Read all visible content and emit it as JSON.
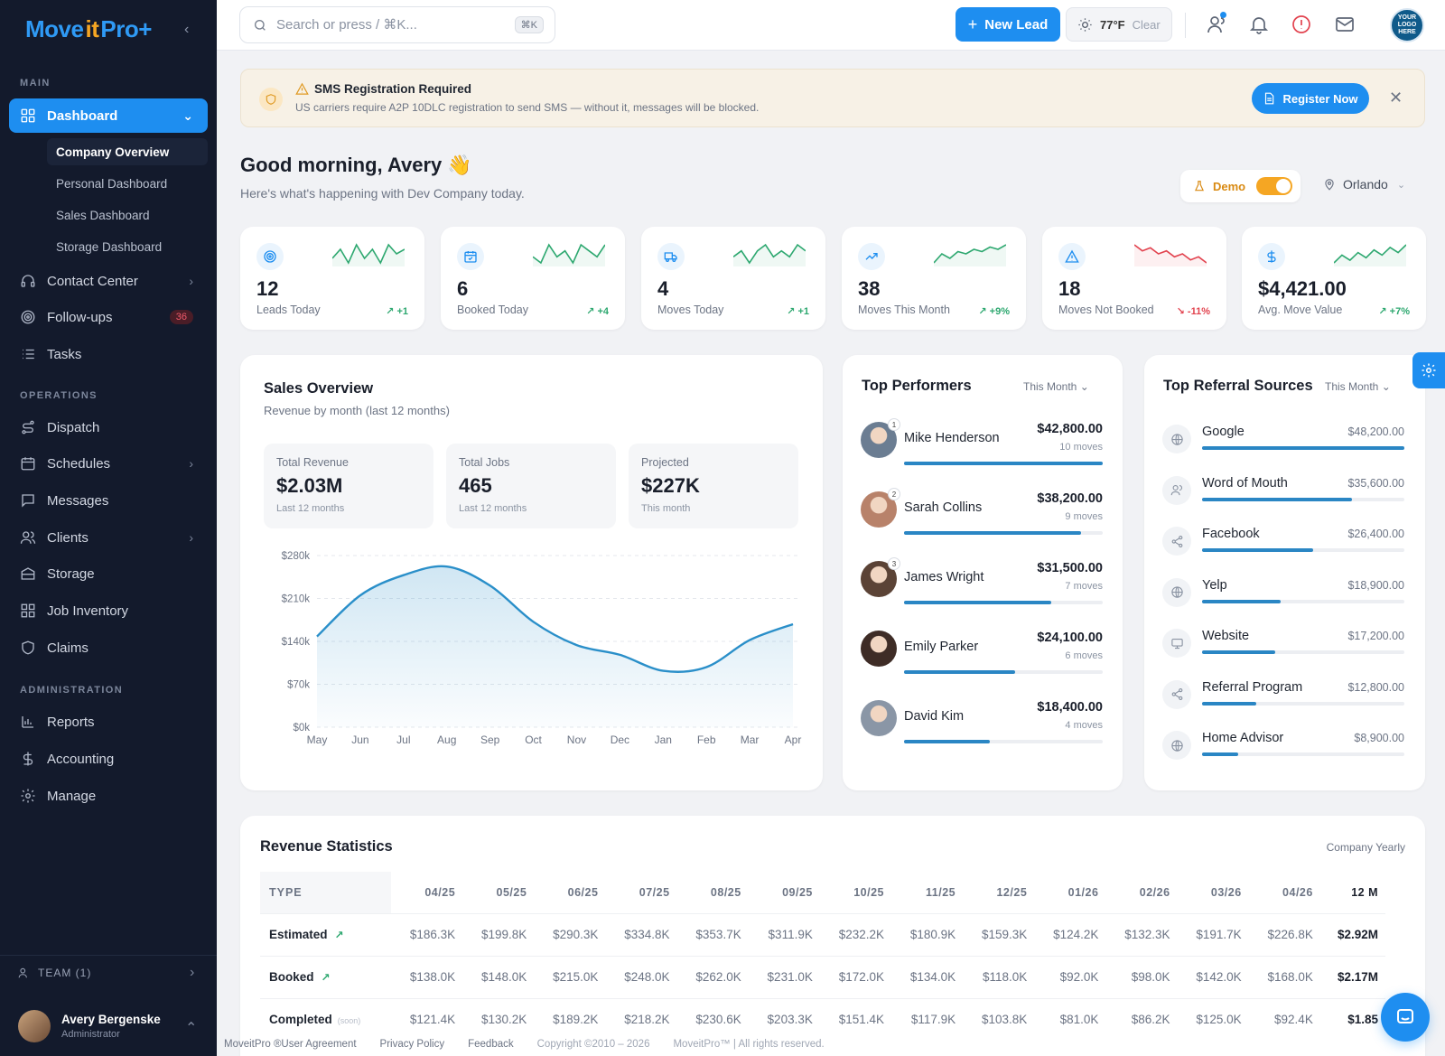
{
  "brand": {
    "part1": "Move",
    "part2": "it",
    "part3": "Pro+"
  },
  "sidebar": {
    "sections": {
      "main": "MAIN",
      "operations": "OPERATIONS",
      "administration": "ADMINISTRATION"
    },
    "dashboard": {
      "label": "Dashboard",
      "icon": "grid-icon"
    },
    "dashboard_sub": [
      "Company Overview",
      "Personal Dashboard",
      "Sales Dashboard",
      "Storage Dashboard"
    ],
    "main_items": [
      {
        "label": "Contact Center",
        "icon": "headset-icon"
      },
      {
        "label": "Follow-ups",
        "icon": "target-icon",
        "badge": "36"
      },
      {
        "label": "Tasks",
        "icon": "list-icon"
      }
    ],
    "operations_items": [
      {
        "label": "Dispatch",
        "icon": "route-icon"
      },
      {
        "label": "Schedules",
        "icon": "calendar-icon"
      },
      {
        "label": "Messages",
        "icon": "message-icon"
      },
      {
        "label": "Clients",
        "icon": "users-icon"
      },
      {
        "label": "Storage",
        "icon": "storage-icon"
      },
      {
        "label": "Job Inventory",
        "icon": "inventory-icon"
      },
      {
        "label": "Claims",
        "icon": "shield-icon"
      }
    ],
    "admin_items": [
      {
        "label": "Reports",
        "icon": "bar-chart-icon"
      },
      {
        "label": "Accounting",
        "icon": "dollar-icon"
      },
      {
        "label": "Manage",
        "icon": "gear-icon"
      }
    ],
    "team": "TEAM (1)",
    "user": {
      "name": "Avery Bergenske",
      "role": "Administrator"
    }
  },
  "topbar": {
    "search_placeholder": "Search or press / ⌘K...",
    "search_kbd": "⌘K",
    "new_lead": "New Lead",
    "weather": {
      "temp": "77°F",
      "condition": "Clear"
    },
    "logo_text": "YOUR LOGO HERE"
  },
  "banner": {
    "title": "SMS Registration Required",
    "text": "US carriers require A2P 10DLC registration to send SMS — without it, messages will be blocked.",
    "button": "Register Now"
  },
  "greeting": {
    "title": "Good morning, Avery 👋",
    "subtitle": "Here's what's happening with Dev Company today."
  },
  "demo": {
    "label": "Demo",
    "on": true
  },
  "location": "Orlando",
  "stats": [
    {
      "value": "12",
      "label": "Leads Today",
      "delta": "↗ +1",
      "icon": "target-icon",
      "trend": "up",
      "spark": [
        3,
        5,
        2,
        6,
        3,
        5,
        2,
        6,
        4,
        5
      ]
    },
    {
      "value": "6",
      "label": "Booked Today",
      "delta": "↗ +4",
      "icon": "calendar-check-icon",
      "trend": "up",
      "spark": [
        3,
        2,
        5,
        3,
        4,
        2,
        5,
        4,
        3,
        5
      ]
    },
    {
      "value": "4",
      "label": "Moves Today",
      "delta": "↗ +1",
      "icon": "truck-icon",
      "trend": "up",
      "spark": [
        3,
        4,
        2,
        4,
        5,
        3,
        4,
        3,
        5,
        4
      ]
    },
    {
      "value": "38",
      "label": "Moves This Month",
      "delta": "↗ +9%",
      "icon": "trending-up-icon",
      "trend": "up",
      "spark": [
        4,
        4.4,
        4.2,
        4.5,
        4.4,
        4.6,
        4.5,
        4.7,
        4.6,
        4.8
      ]
    },
    {
      "value": "18",
      "label": "Moves Not Booked",
      "delta": "↘ -11%",
      "icon": "alert-triangle-icon",
      "trend": "down",
      "spark": [
        5,
        4.8,
        4.9,
        4.7,
        4.8,
        4.6,
        4.7,
        4.5,
        4.6,
        4.4
      ]
    },
    {
      "value": "$4,421.00",
      "label": "Avg. Move Value",
      "delta": "↗ +7%",
      "icon": "dollar-icon",
      "trend": "up",
      "spark": [
        4,
        4.3,
        4.1,
        4.4,
        4.2,
        4.5,
        4.3,
        4.6,
        4.4,
        4.7
      ]
    }
  ],
  "sales": {
    "title": "Sales Overview",
    "subtitle": "Revenue by month (last 12 months)",
    "minis": [
      {
        "label": "Total Revenue",
        "value": "$2.03M",
        "sub": "Last 12 months"
      },
      {
        "label": "Total Jobs",
        "value": "465",
        "sub": "Last 12 months"
      },
      {
        "label": "Projected",
        "value": "$227K",
        "sub": "This month"
      }
    ]
  },
  "chart_data": {
    "type": "area",
    "categories": [
      "May",
      "Jun",
      "Jul",
      "Aug",
      "Sep",
      "Oct",
      "Nov",
      "Dec",
      "Jan",
      "Feb",
      "Mar",
      "Apr"
    ],
    "values": [
      148,
      215,
      248,
      262,
      231,
      172,
      134,
      118,
      92,
      98,
      142,
      168
    ],
    "ylim": [
      0,
      280
    ],
    "yticks": [
      "$0k",
      "$70k",
      "$140k",
      "$210k",
      "$280k"
    ],
    "ytick_values": [
      0,
      70,
      140,
      210,
      280
    ],
    "grid": true,
    "color": "#2a8fc9"
  },
  "performers": {
    "title": "Top Performers",
    "period": "This Month",
    "items": [
      {
        "rank": "1",
        "name": "Mike Henderson",
        "amount": "$42,800.00",
        "moves": "10 moves",
        "share": 1.0,
        "avatar": "#6b7d92"
      },
      {
        "rank": "2",
        "name": "Sarah Collins",
        "amount": "$38,200.00",
        "moves": "9 moves",
        "share": 0.89,
        "avatar": "#b8826a"
      },
      {
        "rank": "3",
        "name": "James Wright",
        "amount": "$31,500.00",
        "moves": "7 moves",
        "share": 0.74,
        "avatar": "#5b4336"
      },
      {
        "rank": "",
        "name": "Emily Parker",
        "amount": "$24,100.00",
        "moves": "6 moves",
        "share": 0.56,
        "avatar": "#3e2c26"
      },
      {
        "rank": "",
        "name": "David Kim",
        "amount": "$18,400.00",
        "moves": "4 moves",
        "share": 0.43,
        "avatar": "#8a96a6"
      }
    ]
  },
  "referrals": {
    "title": "Top Referral Sources",
    "period": "This Month",
    "items": [
      {
        "name": "Google",
        "amount": "$48,200.00",
        "share": 1.0,
        "icon": "globe-icon"
      },
      {
        "name": "Word of Mouth",
        "amount": "$35,600.00",
        "share": 0.74,
        "icon": "users-icon"
      },
      {
        "name": "Facebook",
        "amount": "$26,400.00",
        "share": 0.55,
        "icon": "share-icon"
      },
      {
        "name": "Yelp",
        "amount": "$18,900.00",
        "share": 0.39,
        "icon": "globe-icon"
      },
      {
        "name": "Website",
        "amount": "$17,200.00",
        "share": 0.36,
        "icon": "monitor-icon"
      },
      {
        "name": "Referral Program",
        "amount": "$12,800.00",
        "share": 0.27,
        "icon": "share-icon"
      },
      {
        "name": "Home Advisor",
        "amount": "$8,900.00",
        "share": 0.18,
        "icon": "globe-icon"
      }
    ]
  },
  "revenue": {
    "title": "Revenue Statistics",
    "period": "Company Yearly",
    "columns": [
      "TYPE",
      "04/25",
      "05/25",
      "06/25",
      "07/25",
      "08/25",
      "09/25",
      "10/25",
      "11/25",
      "12/25",
      "01/26",
      "02/26",
      "03/26",
      "04/26",
      "12 M"
    ],
    "rows": [
      {
        "type": "Estimated",
        "arrow": "↗",
        "soon": "",
        "values": [
          "$186.3K",
          "$199.8K",
          "$290.3K",
          "$334.8K",
          "$353.7K",
          "$311.9K",
          "$232.2K",
          "$180.9K",
          "$159.3K",
          "$124.2K",
          "$132.3K",
          "$191.7K",
          "$226.8K"
        ],
        "total": "$2.92M"
      },
      {
        "type": "Booked",
        "arrow": "↗",
        "soon": "",
        "values": [
          "$138.0K",
          "$148.0K",
          "$215.0K",
          "$248.0K",
          "$262.0K",
          "$231.0K",
          "$172.0K",
          "$134.0K",
          "$118.0K",
          "$92.0K",
          "$98.0K",
          "$142.0K",
          "$168.0K"
        ],
        "total": "$2.17M"
      },
      {
        "type": "Completed",
        "arrow": "",
        "soon": "(soon)",
        "values": [
          "$121.4K",
          "$130.2K",
          "$189.2K",
          "$218.2K",
          "$230.6K",
          "$203.3K",
          "$151.4K",
          "$117.9K",
          "$103.8K",
          "$81.0K",
          "$86.2K",
          "$125.0K",
          "$92.4K"
        ],
        "total": "$1.85"
      }
    ]
  },
  "footer": {
    "agreement": "MoveitPro ®User Agreement",
    "privacy": "Privacy Policy",
    "feedback": "Feedback",
    "copyright": "Copyright ©2010 – 2026",
    "rights": "MoveitPro™ | All rights reserved."
  }
}
